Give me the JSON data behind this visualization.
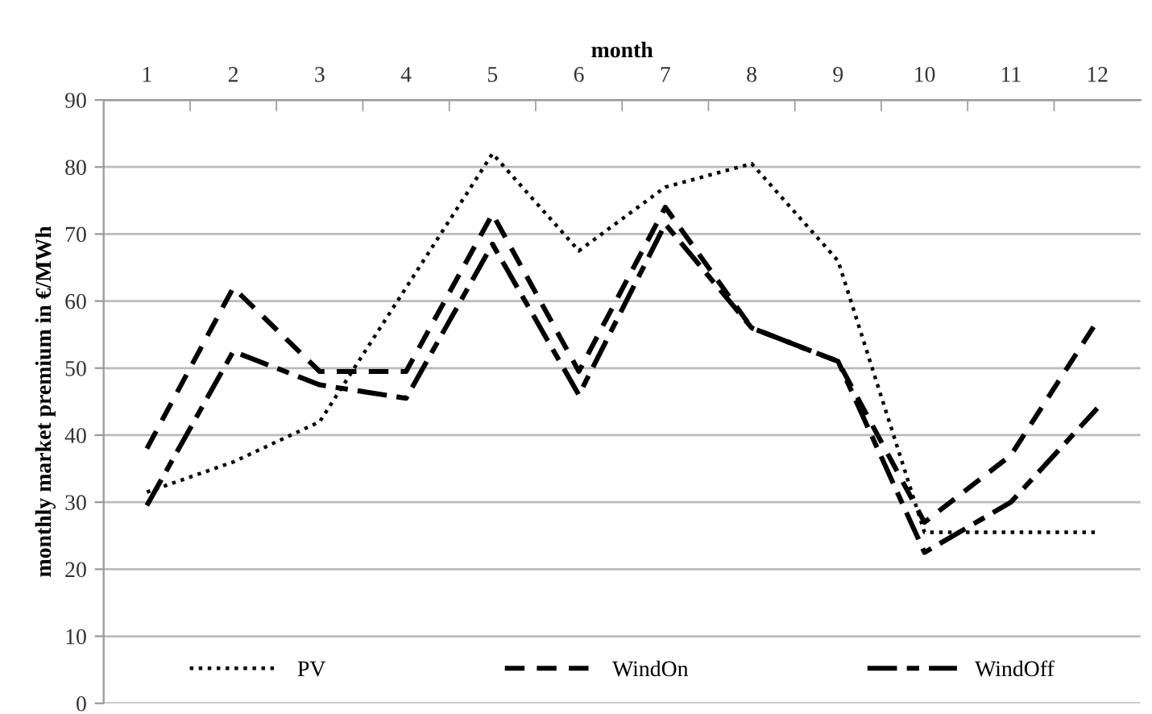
{
  "chart_data": {
    "type": "line",
    "xlabel": "month",
    "ylabel": "monthly market premium in €/MWh",
    "categories": [
      "1",
      "2",
      "3",
      "4",
      "5",
      "6",
      "7",
      "8",
      "9",
      "10",
      "11",
      "12"
    ],
    "series": [
      {
        "name": "PV",
        "color": "#000000",
        "line_style": "dotted",
        "values": [
          31.5,
          36,
          42,
          62,
          82,
          67.5,
          77,
          80.5,
          66,
          25.5,
          25.5,
          25.5
        ]
      },
      {
        "name": "WindOn",
        "color": "#000000",
        "line_style": "dashed",
        "values": [
          38,
          62,
          49.5,
          49.5,
          73,
          49.5,
          74,
          56,
          51,
          27,
          37,
          57
        ]
      },
      {
        "name": "WindOff",
        "color": "#000000",
        "line_style": "dashdot",
        "values": [
          29.5,
          52.5,
          47.5,
          45.5,
          68.5,
          46,
          71.5,
          56,
          51,
          22.5,
          30,
          44
        ]
      }
    ],
    "ylim": [
      0,
      90
    ],
    "yticks": [
      0,
      10,
      20,
      30,
      40,
      50,
      60,
      70,
      80,
      90
    ],
    "grid": "y",
    "legend": "bottom",
    "marker": "none"
  }
}
